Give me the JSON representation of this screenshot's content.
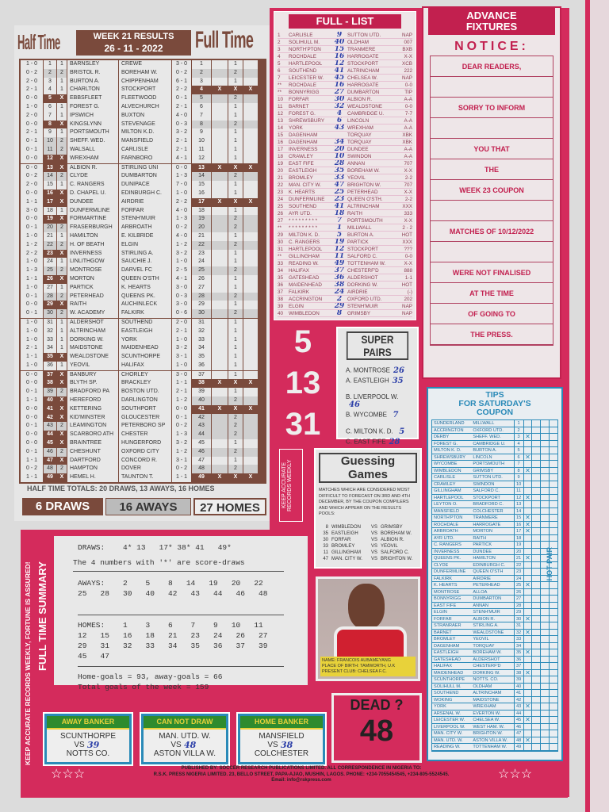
{
  "header": {
    "left": "Half Time",
    "center_line1": "WEEK 21 RESULTS",
    "center_line2": "26 - 11 - 2022",
    "right": "Full Time"
  },
  "results": [
    [
      "1 - 0",
      "1",
      "1",
      "BARNSLEY",
      "CREWE",
      "3 - 0",
      "1"
    ],
    [
      "0 - 2",
      "2",
      "2",
      "BRISTOL R.",
      "BOREHAM W.",
      "0 - 2",
      "2"
    ],
    [
      "2 - 0",
      "3",
      "1",
      "BURTON A.",
      "CHIPPENHAM",
      "6 - 1",
      "1"
    ],
    [
      "2 - 1",
      "4",
      "1",
      "CHARLTON",
      "STOCKPORT",
      "2 - 2",
      "X"
    ],
    [
      "0 - 0",
      "5",
      "X",
      "EBBSFLEET",
      "FLEETWOOD",
      "0 - 1",
      "2"
    ],
    [
      "1 - 0",
      "6",
      "1",
      "FOREST G.",
      "ALVECHURCH",
      "2 - 1",
      "1"
    ],
    [
      "2 - 0",
      "7",
      "1",
      "IPSWICH",
      "BUXTON",
      "4 - 0",
      "1"
    ],
    [
      "0 - 0",
      "8",
      "X",
      "KINGSLYNN",
      "STEVENAGE",
      "0 - 3",
      "2"
    ],
    [
      "2 - 1",
      "9",
      "1",
      "PORTSMOUTH",
      "MILTON K.D.",
      "3 - 2",
      "1"
    ],
    [
      "0 - 1",
      "10",
      "2",
      "SHEFF. WED.",
      "MANSFIELD",
      "2 - 1",
      "1"
    ],
    [
      "0 - 1",
      "11",
      "2",
      "WALSALL",
      "CARLISLE",
      "2 - 1",
      "1"
    ],
    [
      "0 - 0",
      "12",
      "X",
      "WREXHAM",
      "FARNBORO",
      "4 - 1",
      "1"
    ],
    [
      "0 - 0",
      "13",
      "X",
      "ALBION R.",
      "STIRLING UNI",
      "0 - 0",
      "X"
    ],
    [
      "0 - 2",
      "14",
      "2",
      "CLYDE",
      "DUMBARTON",
      "1 - 3",
      "2"
    ],
    [
      "2 - 0",
      "15",
      "1",
      "C. RANGERS",
      "DUNIPACE",
      "7 - 0",
      "1"
    ],
    [
      "0 - 0",
      "16",
      "X",
      "D. CHAPEL U.",
      "EDINBURGH C.",
      "1 - 0",
      "1"
    ],
    [
      "1 - 1",
      "17",
      "X",
      "DUNDEE",
      "AIRDRIE",
      "2 - 2",
      "X"
    ],
    [
      "3 - 0",
      "18",
      "1",
      "DUNFERMLINE",
      "FORFAR",
      "4 - 0",
      "1"
    ],
    [
      "0 - 0",
      "19",
      "X",
      "FORMARTINE",
      "STENH'MUIR",
      "1 - 3",
      "2"
    ],
    [
      "0 - 1",
      "20",
      "2",
      "FRASERBURGH",
      "ARBROATH",
      "0 - 2",
      "2"
    ],
    [
      "1 - 0",
      "21",
      "1",
      "HAMILTON",
      "E. KILBRIDE",
      "4 - 0",
      "1"
    ],
    [
      "1 - 2",
      "22",
      "2",
      "H. OF BEATH",
      "ELGIN",
      "1 - 2",
      "2"
    ],
    [
      "2 - 2",
      "23",
      "X",
      "INVERNESS",
      "STIRLING A.",
      "3 - 2",
      "1"
    ],
    [
      "1 - 0",
      "24",
      "1",
      "LINLITHGOW",
      "SAUCHIE J.",
      "1 - 0",
      "1"
    ],
    [
      "1 - 3",
      "25",
      "2",
      "MONTROSE",
      "DARVEL FC",
      "2 - 5",
      "2"
    ],
    [
      "1 - 1",
      "26",
      "X",
      "MORTON",
      "QUEEN O'STH",
      "4 - 1",
      "1"
    ],
    [
      "1 - 0",
      "27",
      "1",
      "PARTICK",
      "K. HEARTS",
      "3 - 0",
      "1"
    ],
    [
      "0 - 1",
      "28",
      "2",
      "PETERHEAD",
      "QUEENS PK.",
      "0 - 3",
      "2"
    ],
    [
      "0 - 0",
      "29",
      "X",
      "RAITH",
      "AUCHINLECK",
      "3 - 0",
      "1"
    ],
    [
      "0 - 1",
      "30",
      "2",
      "W. ACADEMY",
      "FALKIRK",
      "0 - 6",
      "2"
    ],
    [
      "1 - 0",
      "31",
      "1",
      "ALDERSHOT",
      "SOUTHEND",
      "2 - 0",
      "1"
    ],
    [
      "1 - 0",
      "32",
      "1",
      "ALTRINCHAM",
      "EASTLEIGH",
      "2 - 1",
      "1"
    ],
    [
      "1 - 0",
      "33",
      "1",
      "DORKING W.",
      "YORK",
      "1 - 0",
      "1"
    ],
    [
      "2 - 1",
      "34",
      "1",
      "MAIDSTONE",
      "MAIDENHEAD",
      "3 - 2",
      "1"
    ],
    [
      "1 - 1",
      "35",
      "X",
      "WEALDSTONE",
      "SCUNTHORPE",
      "3 - 1",
      "1"
    ],
    [
      "1 - 0",
      "36",
      "1",
      "YEOVIL",
      "HALIFAX",
      "1 - 0",
      "1"
    ],
    [
      "0 - 0",
      "37",
      "X",
      "BANBURY",
      "CHORLEY",
      "3 - 0",
      "1"
    ],
    [
      "0 - 0",
      "38",
      "X",
      "BLYTH SP.",
      "BRACKLEY",
      "1 - 1",
      "X"
    ],
    [
      "0 - 1",
      "39",
      "2",
      "BRADFORD PA",
      "BOSTON UTD.",
      "2 - 1",
      "1"
    ],
    [
      "1 - 1",
      "40",
      "X",
      "HEREFORD",
      "DARLINGTON",
      "1 - 2",
      "2"
    ],
    [
      "0 - 0",
      "41",
      "X",
      "KETTERING",
      "SOUTHPORT",
      "0 - 0",
      "X"
    ],
    [
      "0 - 0",
      "42",
      "X",
      "KID'MINSTER",
      "GLOUCESTER",
      "0 - 1",
      "2"
    ],
    [
      "0 - 1",
      "43",
      "2",
      "LEAMINGTON",
      "PETERBORO SP",
      "0 - 2",
      "2"
    ],
    [
      "0 - 0",
      "44",
      "X",
      "SCARBORO ATH",
      "CHESTER",
      "1 - 3",
      "2"
    ],
    [
      "0 - 0",
      "45",
      "X",
      "BRAINTREE",
      "HUNGERFORD",
      "3 - 2",
      "1"
    ],
    [
      "0 - 1",
      "46",
      "2",
      "CHESHUNT",
      "OXFORD CITY",
      "1 - 2",
      "2"
    ],
    [
      "1 - 1",
      "47",
      "X",
      "DARTFORD",
      "CONCORD R.",
      "3 - 1",
      "1"
    ],
    [
      "0 - 2",
      "48",
      "2",
      "HAMPTON",
      "DOVER",
      "0 - 2",
      "2"
    ],
    [
      "1 - 1",
      "49",
      "X",
      "HEMEL H.",
      "TAUNTON T.",
      "1 - 1",
      "X"
    ]
  ],
  "ht_totals": "HALF TIME TOTALS:  20 DRAWS,    13 AWAYS,    16 HOMES",
  "ft_totals": {
    "draws": "6 DRAWS",
    "aways": "16 AWAYS",
    "homes": "27 HOMES"
  },
  "full_list": {
    "title": "FULL - LIST",
    "rows": [
      [
        "1",
        "CARLISLE",
        "9",
        "SUTTON UTD.",
        "NAP"
      ],
      [
        "2",
        "SOLIHULL M.",
        "40",
        "OLDHAM",
        "007"
      ],
      [
        "3",
        "NORTH'PTON",
        "15",
        "TRANMERE",
        "BXB"
      ],
      [
        "4",
        "ROCHDALE",
        "16",
        "HARROGATE",
        "X-X"
      ],
      [
        "5",
        "HARTLEPOOL",
        "12",
        "STOCKPORT",
        "XCB"
      ],
      [
        "6",
        "SOUTHEND",
        "41",
        "ALTRINCHAM",
        "222"
      ],
      [
        "7",
        "LEICESTER W.",
        "45",
        "CHELSEA W.",
        "NAP"
      ],
      [
        "**",
        "ROCHDALE",
        "16",
        "HARROGATE",
        "0-0"
      ],
      [
        "**",
        "BONNYRIGG",
        "27",
        "DUMBARTON",
        "TIP"
      ],
      [
        "10",
        "FORFAR",
        "30",
        "ALBION R.",
        "A-A"
      ],
      [
        "11",
        "BARNET",
        "32",
        "WEALDSTONE",
        "0-0"
      ],
      [
        "12",
        "FOREST G.",
        "4",
        "CAMBRIDGE U.",
        "7-7"
      ],
      [
        "13",
        "SHREWSBURY",
        "6",
        "LINCOLN",
        "A-A"
      ],
      [
        "14",
        "YORK",
        "43",
        "WREXHAM",
        "A-A"
      ],
      [
        "15",
        "DAGENHAM",
        "",
        "TORQUAY",
        "XBK"
      ],
      [
        "16",
        "DAGENHAM",
        "34",
        "TORQUAY",
        "XBK"
      ],
      [
        "17",
        "INVERNESS",
        "20",
        "DUNDEE",
        "A-A"
      ],
      [
        "18",
        "CRAWLEY",
        "10",
        "SWINDON",
        "A-A"
      ],
      [
        "19",
        "EAST FIFE",
        "28",
        "ANNAN",
        "707"
      ],
      [
        "20",
        "EASTLEIGH",
        "35",
        "BOREHAM W.",
        "X-X"
      ],
      [
        "21",
        "BROMLEY",
        "33",
        "YEOVIL",
        "2-2"
      ],
      [
        "22",
        "MAN. CITY W.",
        "47",
        "BRIGHTON W.",
        "707"
      ],
      [
        "23",
        "K. HEARTS",
        "25",
        "PETERHEAD",
        "X-X"
      ],
      [
        "24",
        "DUNFERMLINE",
        "23",
        "QUEEN O'STH.",
        "2-2"
      ],
      [
        "25",
        "SOUTHEND",
        "41",
        "ALTRINCHAM",
        "XXX"
      ],
      [
        "26",
        "AYR UTD.",
        "18",
        "RAITH",
        "333"
      ],
      [
        "27",
        "* * * * * * * * *",
        "7",
        "PORTSMOUTH",
        "X-X"
      ],
      [
        "**",
        "* * * * * * * * *",
        "1",
        "MILLWALL",
        "2 - 2"
      ],
      [
        "29",
        "MILTON K. D.",
        "5",
        "BURTON A.",
        "HOT"
      ],
      [
        "30",
        "C. RANGERS",
        "19",
        "PARTICK",
        "XXX"
      ],
      [
        "31",
        "HARTLEPOOL",
        "12",
        "STOCKPORT",
        "???"
      ],
      [
        "**",
        "GILLINGHAM",
        "11",
        "SALFORD C.",
        "0-0"
      ],
      [
        "33",
        "READING W.",
        "49",
        "TOTTENHAM W.",
        "X-X"
      ],
      [
        "34",
        "HALIFAX",
        "37",
        "CHESTERF'D",
        "888"
      ],
      [
        "35",
        "GATESHEAD",
        "36",
        "ALDERSHOT",
        "1-1"
      ],
      [
        "36",
        "MAIDENHEAD",
        "38",
        "DORKING W.",
        "HOT"
      ],
      [
        "37",
        "FALKIRK",
        "24",
        "AIRDRIE",
        "(-)"
      ],
      [
        "38",
        "ACCRINGTON",
        "2",
        "OXFORD UTD.",
        "202"
      ],
      [
        "39",
        "ELGIN",
        "29",
        "STENH'MUIR",
        "NAP"
      ],
      [
        "40",
        "WIMBLEDON",
        "8",
        "GRIMSBY",
        "NAP"
      ]
    ]
  },
  "advance": {
    "title1": "ADVANCE",
    "title2": "FIXTURES",
    "notice": "NOTICE:",
    "lines": [
      "DEAR READERS,",
      "",
      "SORRY TO INFORM",
      "",
      "YOU THAT",
      "THE",
      "WEEK 23 COUPON",
      "",
      "MATCHES OF 10/12/2022",
      "",
      "WERE NOT FINALISED",
      "AT THE TIME",
      "OF GOING TO",
      "THE PRESS."
    ]
  },
  "big_numbers": [
    "5",
    "13",
    "31"
  ],
  "keep_records": "KEEP ACCURATE RECORDS WEEKLY",
  "super_pairs": {
    "title": "SUPER PAIRS",
    "pairs": [
      [
        "A. MONTROSE",
        "26"
      ],
      [
        "A. EASTLEIGH",
        "35"
      ],
      [
        "B. LIVERPOOL W.",
        "46"
      ],
      [
        "B. WYCOMBE",
        "7"
      ],
      [
        "C. MILTON K. D.",
        "5"
      ],
      [
        "C. EAST FIFE",
        "28"
      ]
    ]
  },
  "guessing": {
    "title": "Guessing Games",
    "text": "MATCHES WHICH ARE CONSIDERED MOST DIFFICULT TO FORECAST ON 3RD AND 4TH DECEMBER, BY THE COUPON COMPILERS AND WHICH APPEAR ON THE RESULTS POOLS:",
    "games": [
      [
        "8",
        "WIMBLEDON",
        "VS",
        "GRIMSBY"
      ],
      [
        "35",
        "EASTLEIGH",
        "VS",
        "BOREHAM W."
      ],
      [
        "30",
        "FORFAR",
        "VS",
        "ALBION R."
      ],
      [
        "33",
        "BROMLEY",
        "VS",
        "YEOVIL"
      ],
      [
        "11",
        "GILLINGHAM",
        "VS",
        "SALFORD C."
      ],
      [
        "47",
        "MAN. CITY W.",
        "VS",
        "BRIGHTON W."
      ]
    ]
  },
  "tips": {
    "title1": "TIPS",
    "title2": "FOR SATURDAY'S",
    "title3": "COUPON",
    "hot_pair": "HOT PAIR",
    "rows": [
      [
        "SUNDERLAND",
        "MILLWALL"
      ],
      [
        "ACCRINGTON",
        "OXFORD UTD."
      ],
      [
        "DERBY",
        "SHEFF. WED."
      ],
      [
        "FOREST G.",
        "CAMBRIDGE U."
      ],
      [
        "MILTON K. D.",
        "BURTON A."
      ],
      [
        "SHREWSBURY",
        "LINCOLN"
      ],
      [
        "WYCOMBE",
        "PORTSMOUTH"
      ],
      [
        "WIMBLEDON",
        "GRIMSBY"
      ],
      [
        "CARLISLE",
        "SUTTON UTD."
      ],
      [
        "CRAWLEY",
        "SWINDON"
      ],
      [
        "GILLINGHAM",
        "SALFORD C."
      ],
      [
        "HARTLEPOOL",
        "STOCKPORT"
      ],
      [
        "LEYTON O.",
        "BRADFORD C."
      ],
      [
        "MANSFIELD",
        "COLCHESTER"
      ],
      [
        "NORTH'PTON",
        "TRANMERE"
      ],
      [
        "ROCHDALE",
        "HARROGATE"
      ],
      [
        "ARBROATH",
        "MORTON"
      ],
      [
        "AYR UTD.",
        "RAITH"
      ],
      [
        "C. RANGERS",
        "PARTICK"
      ],
      [
        "INVERNESS",
        "DUNDEE"
      ],
      [
        "QUEENS PK.",
        "HAMILTON"
      ],
      [
        "CLYDE",
        "EDINBURGH C."
      ],
      [
        "DUNFERMLINE",
        "QUEEN O'STH"
      ],
      [
        "FALKIRK",
        "AIRDRIE"
      ],
      [
        "K. HEARTS",
        "PETERHEAD"
      ],
      [
        "MONTROSE",
        "ALLOA"
      ],
      [
        "BONNYRIGG",
        "DUMBARTON"
      ],
      [
        "EAST FIFE",
        "ANNAN"
      ],
      [
        "ELGIN",
        "STENH'MUIR"
      ],
      [
        "FORFAR",
        "ALBION R."
      ],
      [
        "STRANRAER",
        "STIRLING A."
      ],
      [
        "BARNET",
        "WEALDSTONE"
      ],
      [
        "BROMLEY",
        "YEOVIL"
      ],
      [
        "DAGENHAM",
        "TORQUAY"
      ],
      [
        "EASTLEIGH",
        "BOREHAM W."
      ],
      [
        "GATESHEAD",
        "ALDERSHOT"
      ],
      [
        "HALIFAX",
        "CHESTERF'D"
      ],
      [
        "MAIDENHEAD",
        "DORKING W."
      ],
      [
        "SCUNTHORPE",
        "NOTTS. CO."
      ],
      [
        "SOLIHULL M.",
        "OLDHAM"
      ],
      [
        "SOUTHEND",
        "ALTRINCHAM"
      ],
      [
        "WOKING",
        "MAIDSTONE"
      ],
      [
        "YORK",
        "WREXHAM"
      ],
      [
        "ARSENAL W.",
        "EVERTON W."
      ],
      [
        "LEICESTER W.",
        "CHELSEA W."
      ],
      [
        "LIVERPOOL W.",
        "WEST HAM. W."
      ],
      [
        "MAN. CITY W.",
        "BRIGHTON W."
      ],
      [
        "MAN. UTD. W.",
        "ASTON VILLA W."
      ],
      [
        "READING W.",
        "TOTTENHAM W."
      ]
    ],
    "marked": [
      3,
      6,
      8,
      12,
      15,
      16,
      17,
      21,
      25,
      30,
      32,
      35,
      38,
      43,
      45,
      48
    ]
  },
  "summary": {
    "side_title": "FULL TIME SUMMARY",
    "side_slogan": "KEEP ACCURATE RECORDS WEEKLY, FORTUNE IS ASSURED!",
    "draws": "DRAWS:    4* 13   17* 38* 41   49*",
    "note": "The 4 numbers with '*' are score-draws",
    "aways": [
      "AWAYS:    2    5    8   14   19   20   22",
      "25   28   30   40   42   43   44   46   48"
    ],
    "homes": [
      "HOMES:    1    3    6    7    9   10   11",
      "12   15   16   18   21   23   24   26   27",
      "29   31   32   33   34   35   36   37   39",
      "45   47"
    ],
    "goals": "Home-goals = 93, away-goals = 66",
    "total": "Total goals of the week = 159"
  },
  "player": {
    "name_label": "NAME:",
    "name": "FRANCOIS AUBAMEYANG",
    "birth_label": "PLACE OF BIRTH:",
    "birth": "TAMWORTH, U.K",
    "club_label": "PRESENT CLUB:",
    "club": "CHELSEA F.C."
  },
  "dead": {
    "label": "DEAD ?",
    "number": "48"
  },
  "bankers": [
    {
      "title": "AWAY BANKER",
      "home": "SCUNTHORPE",
      "vs": "VS",
      "away": "NOTTS CO.",
      "num": "39"
    },
    {
      "title": "CAN NOT DRAW",
      "home": "MAN. UTD. W.",
      "vs": "VS",
      "away": "ASTON VILLA W.",
      "num": "48"
    },
    {
      "title": "HOME BANKER",
      "home": "MANSFIELD",
      "vs": "VS",
      "away": "COLCHESTER",
      "num": "38"
    }
  ],
  "footer": {
    "line1": "PUBLISHED BY: SOCCER RESEARCH PUBLICATIONS LIMITED.  ALL CORRESPONDENCE IN NIGERIA TO:",
    "line2": "R.S.K. PRESS NIGERIA LIMITED. 23, BELLO STREET, PAPA-AJAO, MUSHIN, LAGOS. PHONE: +234-7055454545, +234-805-5524545.",
    "line3": "Email: info@rskpress.com"
  },
  "colors": {
    "brown": "#7a4a3c",
    "crimson": "#d42b5c",
    "blue": "#2a8ab8",
    "green": "#2e8b2e",
    "yellow": "#e8d23a"
  }
}
